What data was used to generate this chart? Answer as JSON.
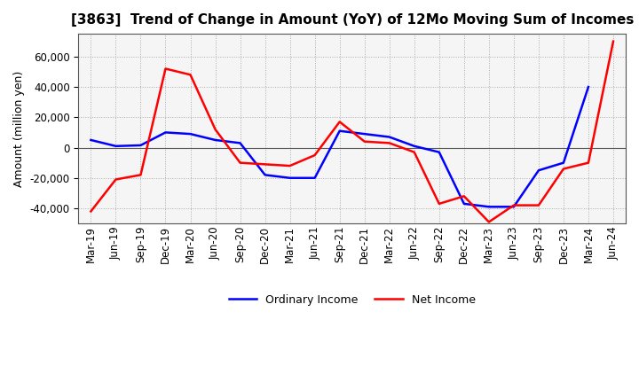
{
  "title": "[3863]  Trend of Change in Amount (YoY) of 12Mo Moving Sum of Incomes",
  "ylabel": "Amount (million yen)",
  "background_color": "#ffffff",
  "plot_bg_color": "#f5f5f5",
  "grid_color": "#aaaaaa",
  "x_labels": [
    "Mar-19",
    "Jun-19",
    "Sep-19",
    "Dec-19",
    "Mar-20",
    "Jun-20",
    "Sep-20",
    "Dec-20",
    "Mar-21",
    "Jun-21",
    "Sep-21",
    "Dec-21",
    "Mar-22",
    "Jun-22",
    "Sep-22",
    "Dec-22",
    "Mar-23",
    "Jun-23",
    "Sep-23",
    "Dec-23",
    "Mar-24",
    "Jun-24"
  ],
  "ordinary_income": [
    5000,
    1000,
    1500,
    10000,
    9000,
    5000,
    3000,
    -18000,
    -20000,
    -20000,
    11000,
    9000,
    7000,
    1000,
    -3000,
    -37000,
    -39000,
    -39000,
    -15000,
    -10000,
    40000,
    null
  ],
  "net_income": [
    -42000,
    -21000,
    -18000,
    52000,
    48000,
    12000,
    -10000,
    -11000,
    -12000,
    -5000,
    17000,
    4000,
    3000,
    -3000,
    -37000,
    -32000,
    -49000,
    -38000,
    -38000,
    -14000,
    -10000,
    70000
  ],
  "ylim": [
    -50000,
    75000
  ],
  "yticks": [
    -40000,
    -20000,
    0,
    20000,
    40000,
    60000
  ],
  "ordinary_color": "#0000ff",
  "net_color": "#ff0000",
  "line_width": 1.8,
  "title_fontsize": 11,
  "axis_fontsize": 8.5,
  "ylabel_fontsize": 9,
  "legend_fontsize": 9
}
